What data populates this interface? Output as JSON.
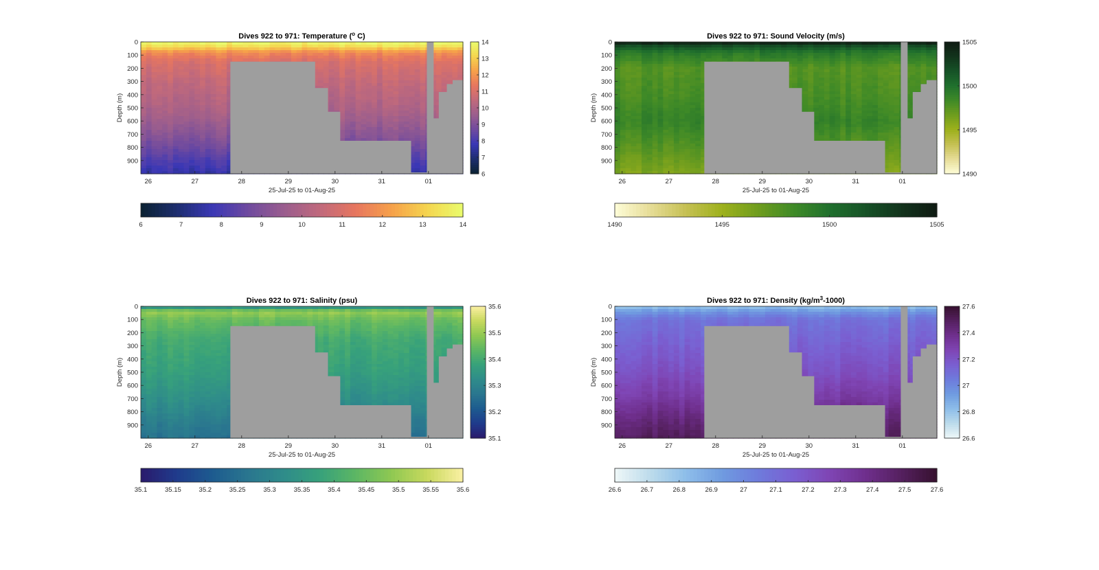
{
  "common": {
    "xlabel": "25-Jul-25 to 01-Aug-25",
    "ylabel": "Depth (m)",
    "x_ticks": [
      "26",
      "27",
      "28",
      "29",
      "30",
      "31",
      "01"
    ],
    "y_ticks": [
      "0",
      "100",
      "200",
      "300",
      "400",
      "500",
      "600",
      "700",
      "800",
      "900"
    ],
    "no_data_color": "#9e9e9e"
  },
  "chart_data": [
    {
      "type": "heatmap",
      "title_pre": "Dives 922 to 971: Temperature (",
      "title_sup": "o",
      "title_post": " C)",
      "variable": "temperature",
      "ylim": [
        1000,
        0
      ],
      "clim": [
        6,
        14
      ],
      "colormap": [
        "#0b2232",
        "#1d2e6e",
        "#3a37b5",
        "#6f4a9f",
        "#9a5d8e",
        "#c0697c",
        "#e7765f",
        "#f6a04a",
        "#f5d54f",
        "#e9fc6d"
      ],
      "profile": [
        [
          0,
          14
        ],
        [
          40,
          13.2
        ],
        [
          80,
          11.8
        ],
        [
          150,
          11.0
        ],
        [
          300,
          10.5
        ],
        [
          500,
          10.0
        ],
        [
          700,
          9.2
        ],
        [
          850,
          8.4
        ],
        [
          1000,
          7.6
        ]
      ],
      "colorbar_vertical_ticks": [
        "6",
        "7",
        "8",
        "9",
        "10",
        "11",
        "12",
        "13",
        "14"
      ],
      "colorbar_horizontal_ticks": [
        "6",
        "7",
        "8",
        "9",
        "10",
        "11",
        "12",
        "13",
        "14"
      ]
    },
    {
      "type": "heatmap",
      "title_pre": "Dives 922 to 971: Sound Velocity (m/s)",
      "title_sup": "",
      "title_post": "",
      "variable": "sound_velocity",
      "ylim": [
        1000,
        0
      ],
      "clim": [
        1490,
        1505
      ],
      "colormap": [
        "#fefdd8",
        "#e6dc96",
        "#c5c053",
        "#9db11c",
        "#6f9d1e",
        "#3f8a27",
        "#20702d",
        "#165227",
        "#12331c",
        "#0f1a12"
      ],
      "profile": [
        [
          0,
          1505
        ],
        [
          30,
          1502
        ],
        [
          80,
          1499.5
        ],
        [
          200,
          1497.5
        ],
        [
          400,
          1498
        ],
        [
          600,
          1498.8
        ],
        [
          800,
          1497.5
        ],
        [
          1000,
          1496
        ]
      ],
      "colorbar_vertical_ticks": [
        "1490",
        "1495",
        "1500",
        "1505"
      ],
      "colorbar_horizontal_ticks": [
        "1490",
        "1495",
        "1500",
        "1505"
      ]
    },
    {
      "type": "heatmap",
      "title_pre": "Dives 922 to 971: Salinity (psu)",
      "title_sup": "",
      "title_post": "",
      "variable": "salinity",
      "ylim": [
        1000,
        0
      ],
      "clim": [
        35.1,
        35.6
      ],
      "colormap": [
        "#2a1a6c",
        "#1f3b8c",
        "#1d5b8f",
        "#2a768f",
        "#2f8c8a",
        "#37a17b",
        "#5cb664",
        "#8fc852",
        "#c8d95e",
        "#fbf0a3"
      ],
      "profile": [
        [
          0,
          35.3
        ],
        [
          40,
          35.5
        ],
        [
          100,
          35.45
        ],
        [
          250,
          35.4
        ],
        [
          500,
          35.37
        ],
        [
          700,
          35.33
        ],
        [
          900,
          35.28
        ],
        [
          1000,
          35.26
        ]
      ],
      "colorbar_vertical_ticks": [
        "35.1",
        "35.2",
        "35.3",
        "35.4",
        "35.5",
        "35.6"
      ],
      "colorbar_horizontal_ticks": [
        "35.1",
        "35.15",
        "35.2",
        "35.25",
        "35.3",
        "35.35",
        "35.4",
        "35.45",
        "35.5",
        "35.55",
        "35.6"
      ]
    },
    {
      "type": "heatmap",
      "title_pre": "Dives 922 to 971: Density (kg/m",
      "title_sup": "3",
      "title_post": "-1000)",
      "variable": "density",
      "ylim": [
        1000,
        0
      ],
      "clim": [
        26.6,
        27.6
      ],
      "colormap": [
        "#eef7f8",
        "#bcdbeb",
        "#8dbde9",
        "#6f9be0",
        "#6e7bdc",
        "#7a5fd1",
        "#7f45b4",
        "#6f2f8d",
        "#55205f",
        "#36112f"
      ],
      "profile": [
        [
          0,
          26.8
        ],
        [
          40,
          26.95
        ],
        [
          100,
          27.08
        ],
        [
          300,
          27.15
        ],
        [
          500,
          27.22
        ],
        [
          700,
          27.32
        ],
        [
          850,
          27.42
        ],
        [
          1000,
          27.5
        ]
      ],
      "colorbar_vertical_ticks": [
        "26.6",
        "26.8",
        "27",
        "27.2",
        "27.4",
        "27.6"
      ],
      "colorbar_horizontal_ticks": [
        "26.6",
        "26.7",
        "26.8",
        "26.9",
        "27",
        "27.1",
        "27.2",
        "27.3",
        "27.4",
        "27.5",
        "27.6"
      ]
    }
  ]
}
